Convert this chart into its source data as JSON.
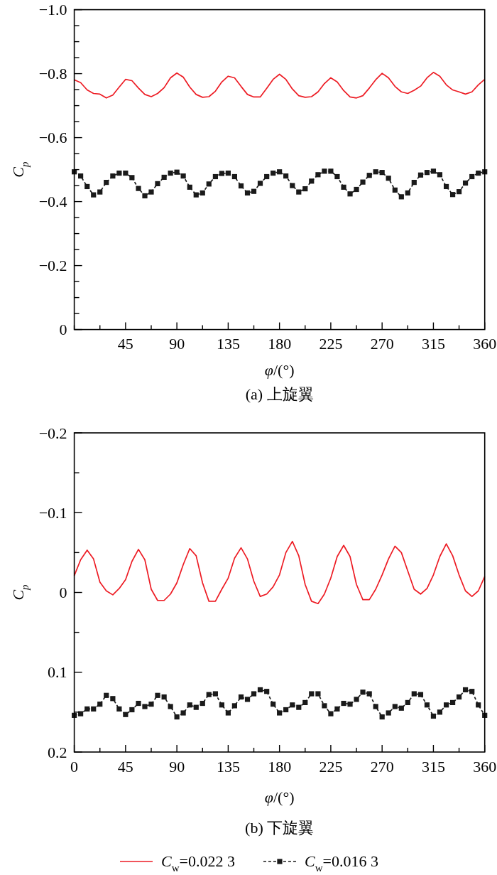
{
  "chart_data": [
    {
      "type": "line",
      "xlabel": "*φ*/(°)",
      "ylabel": "*C$_{p}$*",
      "annotations": [
        "(a) 上旋翼"
      ],
      "x": [
        0,
        5.6,
        11.3,
        16.9,
        22.5,
        28.1,
        33.8,
        39.4,
        45,
        50.6,
        56.3,
        61.9,
        67.5,
        73.1,
        78.8,
        84.4,
        90,
        95.6,
        101.3,
        106.9,
        112.5,
        118.1,
        123.8,
        129.4,
        135,
        140.6,
        146.3,
        151.9,
        157.5,
        163.1,
        168.8,
        174.4,
        180,
        185.6,
        191.3,
        196.9,
        202.5,
        208.1,
        213.8,
        219.4,
        225,
        230.6,
        236.3,
        241.9,
        247.5,
        253.1,
        258.8,
        264.4,
        270,
        275.6,
        281.3,
        286.9,
        292.5,
        298.1,
        303.8,
        309.4,
        315,
        320.6,
        326.3,
        331.9,
        337.5,
        343.1,
        348.8,
        354.4,
        360
      ],
      "xlim": [
        0,
        360
      ],
      "xticks": [
        {
          "value": 0,
          "label": null
        },
        {
          "value": 22.5,
          "label": null
        },
        45,
        {
          "value": 67.5,
          "label": null
        },
        90,
        {
          "value": 112.5,
          "label": null
        },
        135,
        {
          "value": 157.5,
          "label": null
        },
        180,
        {
          "value": 202.5,
          "label": null
        },
        225,
        {
          "value": 247.5,
          "label": null
        },
        270,
        {
          "value": 292.5,
          "label": null
        },
        315,
        {
          "value": 337.5,
          "label": null
        },
        360
      ],
      "ylim": [
        0,
        -1
      ],
      "yticks": [
        {
          "value": -1,
          "label": "−1.0"
        },
        {
          "value": -0.95,
          "label": null
        },
        {
          "value": -0.9,
          "label": null
        },
        {
          "value": -0.85,
          "label": null
        },
        {
          "value": -0.8,
          "label": "−0.8"
        },
        {
          "value": -0.75,
          "label": null
        },
        {
          "value": -0.7,
          "label": null
        },
        {
          "value": -0.65,
          "label": null
        },
        {
          "value": -0.6,
          "label": "−0.6"
        },
        {
          "value": -0.55,
          "label": null
        },
        {
          "value": -0.5,
          "label": null
        },
        {
          "value": -0.45,
          "label": null
        },
        {
          "value": -0.4,
          "label": "−0.4"
        },
        {
          "value": -0.35,
          "label": null
        },
        {
          "value": -0.3,
          "label": null
        },
        {
          "value": -0.25,
          "label": null
        },
        {
          "value": -0.2,
          "label": "−0.2"
        },
        {
          "value": -0.15,
          "label": null
        },
        {
          "value": -0.1,
          "label": null
        },
        {
          "value": -0.05,
          "label": null
        },
        0
      ],
      "series": [
        {
          "color": "#ed1c24",
          "line_style": "solid",
          "values": [
            -0.781,
            -0.772,
            -0.749,
            -0.738,
            -0.736,
            -0.724,
            -0.733,
            -0.758,
            -0.782,
            -0.778,
            -0.755,
            -0.735,
            -0.728,
            -0.738,
            -0.756,
            -0.787,
            -0.802,
            -0.789,
            -0.758,
            -0.735,
            -0.726,
            -0.728,
            -0.745,
            -0.774,
            -0.792,
            -0.787,
            -0.76,
            -0.735,
            -0.727,
            -0.727,
            -0.754,
            -0.782,
            -0.798,
            -0.782,
            -0.752,
            -0.731,
            -0.726,
            -0.728,
            -0.743,
            -0.769,
            -0.787,
            -0.774,
            -0.747,
            -0.727,
            -0.724,
            -0.731,
            -0.755,
            -0.781,
            -0.801,
            -0.787,
            -0.76,
            -0.743,
            -0.738,
            -0.748,
            -0.761,
            -0.787,
            -0.804,
            -0.792,
            -0.765,
            -0.749,
            -0.743,
            -0.736,
            -0.743,
            -0.765,
            -0.782
          ]
        },
        {
          "color": "#1a1a1a",
          "line_style": "dashed",
          "marker": "square",
          "values": [
            -0.493,
            -0.48,
            -0.447,
            -0.421,
            -0.43,
            -0.46,
            -0.48,
            -0.489,
            -0.489,
            -0.475,
            -0.441,
            -0.418,
            -0.43,
            -0.456,
            -0.476,
            -0.489,
            -0.492,
            -0.48,
            -0.445,
            -0.421,
            -0.427,
            -0.455,
            -0.478,
            -0.488,
            -0.489,
            -0.478,
            -0.449,
            -0.427,
            -0.432,
            -0.457,
            -0.478,
            -0.489,
            -0.493,
            -0.48,
            -0.45,
            -0.43,
            -0.44,
            -0.464,
            -0.484,
            -0.495,
            -0.495,
            -0.478,
            -0.445,
            -0.424,
            -0.438,
            -0.461,
            -0.482,
            -0.493,
            -0.491,
            -0.473,
            -0.436,
            -0.415,
            -0.427,
            -0.46,
            -0.483,
            -0.491,
            -0.495,
            -0.484,
            -0.447,
            -0.422,
            -0.431,
            -0.458,
            -0.478,
            -0.489,
            -0.493
          ]
        }
      ]
    },
    {
      "type": "line",
      "xlabel": "*φ*/(°)",
      "ylabel": "*C$_{p}$*",
      "annotations": [
        "(b) 下旋翼"
      ],
      "legend": "bottom",
      "x": [
        0,
        5.6,
        11.3,
        16.9,
        22.5,
        28.1,
        33.8,
        39.4,
        45,
        50.6,
        56.3,
        61.9,
        67.5,
        73.1,
        78.8,
        84.4,
        90,
        95.6,
        101.3,
        106.9,
        112.5,
        118.1,
        123.8,
        129.4,
        135,
        140.6,
        146.3,
        151.9,
        157.5,
        163.1,
        168.8,
        174.4,
        180,
        185.6,
        191.3,
        196.9,
        202.5,
        208.1,
        213.8,
        219.4,
        225,
        230.6,
        236.3,
        241.9,
        247.5,
        253.1,
        258.8,
        264.4,
        270,
        275.6,
        281.3,
        286.9,
        292.5,
        298.1,
        303.8,
        309.4,
        315,
        320.6,
        326.3,
        331.9,
        337.5,
        343.1,
        348.8,
        354.4,
        360
      ],
      "xlim": [
        0,
        360
      ],
      "xticks": [
        0,
        {
          "value": 22.5,
          "label": null
        },
        45,
        {
          "value": 67.5,
          "label": null
        },
        90,
        {
          "value": 112.5,
          "label": null
        },
        135,
        {
          "value": 157.5,
          "label": null
        },
        180,
        {
          "value": 202.5,
          "label": null
        },
        225,
        {
          "value": 247.5,
          "label": null
        },
        270,
        {
          "value": 292.5,
          "label": null
        },
        315,
        {
          "value": 337.5,
          "label": null
        },
        360
      ],
      "ylim": [
        0.2,
        -0.2
      ],
      "yticks": [
        {
          "value": -0.2,
          "label": "−0.2"
        },
        {
          "value": -0.15,
          "label": null
        },
        {
          "value": -0.1,
          "label": "−0.1"
        },
        {
          "value": -0.05,
          "label": null
        },
        0,
        {
          "value": 0.05,
          "label": null
        },
        0.1,
        {
          "value": 0.15,
          "label": null
        },
        0.2
      ],
      "series": [
        {
          "name": "*C*$_{w}$=0.022 3",
          "color": "#ed1c24",
          "line_style": "solid",
          "values": [
            -0.021,
            -0.041,
            -0.053,
            -0.042,
            -0.013,
            -0.002,
            0.003,
            -0.005,
            -0.016,
            -0.039,
            -0.054,
            -0.041,
            -0.004,
            0.01,
            0.01,
            0.002,
            -0.012,
            -0.035,
            -0.055,
            -0.046,
            -0.012,
            0.011,
            0.011,
            -0.004,
            -0.018,
            -0.043,
            -0.056,
            -0.042,
            -0.014,
            0.005,
            0.002,
            -0.007,
            -0.022,
            -0.05,
            -0.064,
            -0.046,
            -0.01,
            0.011,
            0.014,
            0.002,
            -0.018,
            -0.045,
            -0.059,
            -0.045,
            -0.01,
            0.009,
            0.009,
            -0.004,
            -0.022,
            -0.042,
            -0.058,
            -0.05,
            -0.027,
            -0.004,
            0.002,
            -0.005,
            -0.022,
            -0.045,
            -0.061,
            -0.046,
            -0.022,
            -0.002,
            0.005,
            -0.002,
            -0.02
          ]
        },
        {
          "name": "*C*$_{w}$=0.016 3",
          "color": "#1a1a1a",
          "line_style": "dashed",
          "marker": "square",
          "values": [
            0.154,
            0.152,
            0.146,
            0.146,
            0.14,
            0.129,
            0.133,
            0.146,
            0.153,
            0.147,
            0.139,
            0.143,
            0.14,
            0.129,
            0.131,
            0.143,
            0.156,
            0.151,
            0.141,
            0.144,
            0.139,
            0.128,
            0.127,
            0.141,
            0.151,
            0.142,
            0.131,
            0.134,
            0.127,
            0.122,
            0.124,
            0.14,
            0.151,
            0.147,
            0.141,
            0.144,
            0.138,
            0.127,
            0.127,
            0.142,
            0.152,
            0.146,
            0.139,
            0.14,
            0.134,
            0.125,
            0.127,
            0.143,
            0.156,
            0.151,
            0.143,
            0.145,
            0.138,
            0.127,
            0.128,
            0.141,
            0.155,
            0.15,
            0.141,
            0.138,
            0.131,
            0.122,
            0.124,
            0.141,
            0.154
          ]
        }
      ]
    }
  ]
}
